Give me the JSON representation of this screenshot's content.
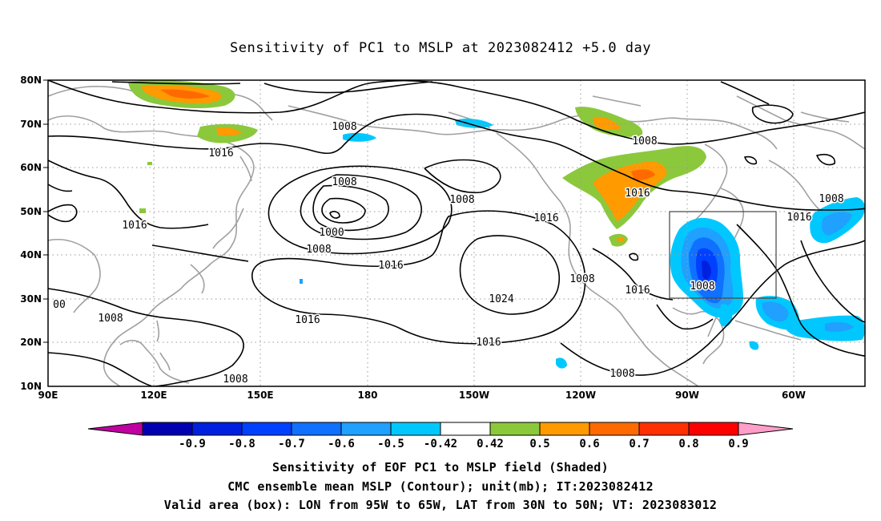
{
  "title": "Sensitivity of PC1 to MSLP at 2023082412 +5.0 day",
  "lat_labels": [
    "80N",
    "70N",
    "60N",
    "50N",
    "40N",
    "30N",
    "20N",
    "10N"
  ],
  "lon_labels": [
    "90E",
    "120E",
    "150E",
    "180",
    "150W",
    "120W",
    "90W",
    "60W"
  ],
  "contour_labels": [
    {
      "text": "1008"
    },
    {
      "text": "1016"
    },
    {
      "text": "1008"
    },
    {
      "text": "1000"
    },
    {
      "text": "1008"
    },
    {
      "text": "1008"
    },
    {
      "text": "1016"
    },
    {
      "text": "1016"
    },
    {
      "text": "1024"
    },
    {
      "text": "1016"
    },
    {
      "text": "1016"
    },
    {
      "text": "1008"
    },
    {
      "text": "1016"
    },
    {
      "text": "1008"
    },
    {
      "text": "1008"
    },
    {
      "text": "1008"
    },
    {
      "text": "1016"
    },
    {
      "text": "1008"
    },
    {
      "text": "1016"
    },
    {
      "text": "1008"
    },
    {
      "text": "00"
    },
    {
      "text": "1016"
    },
    {
      "text": "1008"
    }
  ],
  "colorbar": {
    "labels": [
      "-0.9",
      "-0.8",
      "-0.7",
      "-0.6",
      "-0.5",
      "-0.42",
      "0.42",
      "0.5",
      "0.6",
      "0.7",
      "0.8",
      "0.9"
    ],
    "colors": [
      "#0000b0",
      "#0020e0",
      "#0040ff",
      "#1070ff",
      "#20a0ff",
      "#00c8ff",
      "#ffffff",
      "#8cc83c",
      "#ff9a00",
      "#ff6a00",
      "#ff3000",
      "#ff0000"
    ],
    "low_end": "#c000a0",
    "high_end": "#ff9ec8"
  },
  "caption": [
    "Sensitivity of EOF PC1 to MSLP field (Shaded)",
    "CMC ensemble mean MSLP (Contour); unit(mb); IT:2023082412",
    "Valid area (box): LON from 95W to 65W, LAT from 30N to 50N; VT: 2023083012"
  ]
}
